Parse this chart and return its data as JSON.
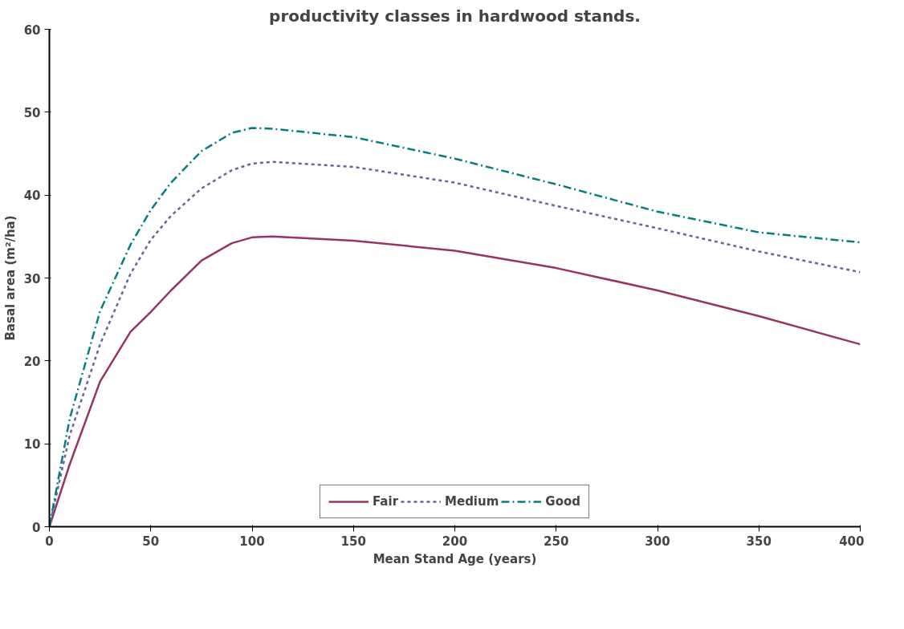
{
  "chart_data": {
    "type": "line",
    "title": "productivity classes in hardwood stands.",
    "xlabel": "Mean Stand Age (years)",
    "ylabel": "Basal area (m²/ha)",
    "xlim": [
      0,
      400
    ],
    "xticks": [
      0,
      50,
      100,
      150,
      200,
      250,
      300,
      350,
      400
    ],
    "ylim": [
      0,
      60
    ],
    "yticks": [
      0,
      10,
      20,
      30,
      40,
      50,
      60
    ],
    "grid": false,
    "legend": "bottom",
    "marker": "none",
    "series": [
      {
        "name": "Fair",
        "color": "#993366",
        "line_style": "solid",
        "x": [
          0,
          10,
          25,
          40,
          50,
          60,
          75,
          90,
          100,
          110,
          150,
          200,
          250,
          300,
          350,
          400
        ],
        "values": [
          0,
          7.5,
          17.5,
          23.5,
          25.9,
          28.5,
          32.1,
          34.2,
          34.9,
          35,
          34.5,
          33.3,
          31.2,
          28.5,
          25.4,
          22
        ]
      },
      {
        "name": "Medium",
        "color": "#666699",
        "line_style": "dashed",
        "x": [
          0,
          10,
          25,
          40,
          50,
          60,
          75,
          90,
          100,
          110,
          150,
          200,
          250,
          300,
          350,
          400
        ],
        "values": [
          0,
          11,
          22,
          30.5,
          34.6,
          37.5,
          40.8,
          43,
          43.8,
          44,
          43.4,
          41.5,
          38.7,
          36,
          33.2,
          30.7
        ]
      },
      {
        "name": "Good",
        "color": "#008080",
        "line_style": "dashdot",
        "x": [
          0,
          10,
          25,
          40,
          50,
          60,
          75,
          90,
          100,
          110,
          150,
          200,
          250,
          300,
          350,
          400
        ],
        "values": [
          0,
          13,
          26,
          34,
          38.2,
          41.5,
          45.3,
          47.5,
          48.1,
          48,
          47,
          44.4,
          41.3,
          38,
          35.5,
          34.3
        ]
      }
    ]
  }
}
